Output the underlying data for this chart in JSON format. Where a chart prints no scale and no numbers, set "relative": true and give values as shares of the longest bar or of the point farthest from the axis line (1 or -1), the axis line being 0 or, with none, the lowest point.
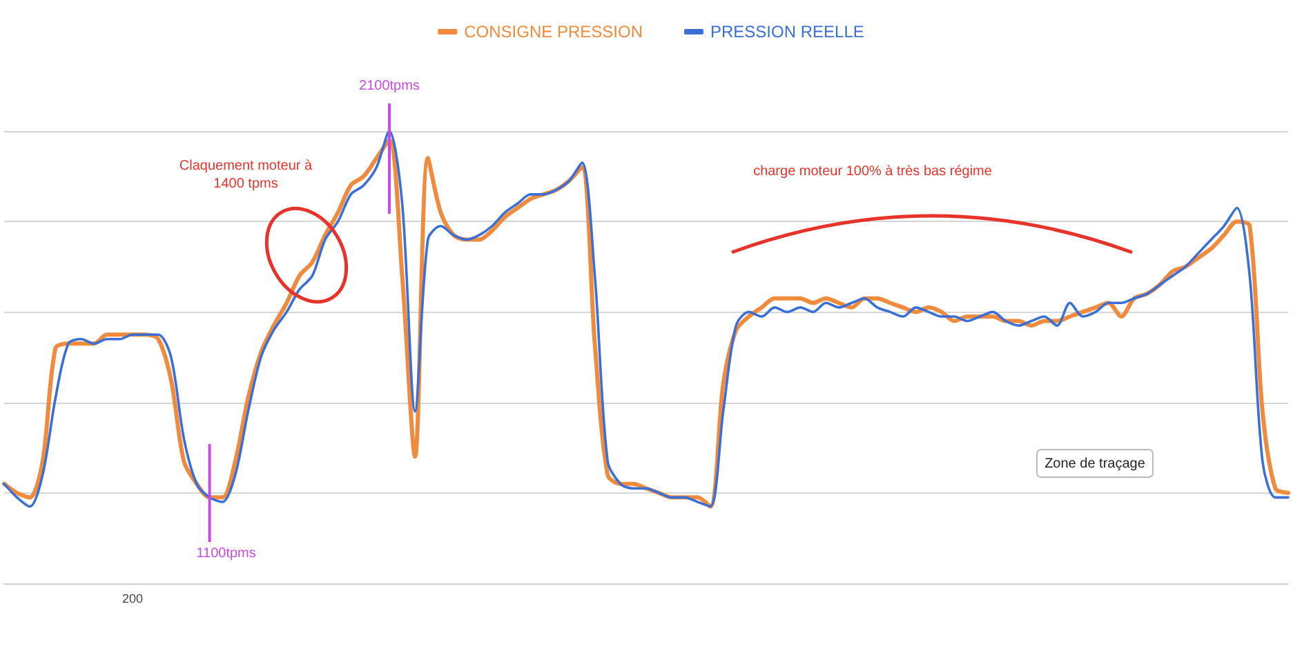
{
  "chart_data": {
    "type": "line",
    "relative": true,
    "grid": "y",
    "legend": "top",
    "marker": "none",
    "categories": [
      null,
      null,
      null,
      null,
      null,
      null,
      null,
      null,
      null,
      null,
      null,
      null,
      null,
      null,
      null,
      null,
      null,
      null,
      null,
      null,
      null,
      null,
      null,
      null,
      null,
      null,
      null,
      null,
      null,
      null,
      null,
      null,
      null,
      null,
      null,
      null,
      null,
      null,
      null,
      null,
      null,
      null,
      null,
      null,
      null,
      null,
      null,
      null,
      null,
      null,
      null,
      null,
      null,
      null,
      null,
      null,
      null,
      null,
      null,
      null,
      null,
      null,
      null,
      null,
      null,
      null,
      null,
      null,
      null,
      null,
      null,
      null,
      null,
      null,
      null,
      null,
      null,
      null,
      null,
      null,
      null,
      null,
      null,
      null,
      null,
      null,
      null,
      null,
      null,
      null,
      null,
      null,
      null,
      null,
      null,
      null,
      null,
      null,
      null,
      null,
      null
    ],
    "series": [
      {
        "name": "CONSIGNE PRESSION",
        "color": "#f08a3c",
        "values": [
          0.22,
          0.2,
          0.19,
          0.27,
          0.52,
          0.53,
          0.53,
          0.53,
          0.55,
          0.55,
          0.55,
          0.55,
          0.54,
          0.45,
          0.27,
          0.22,
          0.19,
          0.19,
          0.27,
          0.41,
          0.51,
          0.57,
          0.62,
          0.68,
          0.71,
          0.77,
          0.82,
          0.88,
          0.9,
          0.94,
          0.98,
          0.68,
          0.28,
          0.94,
          0.82,
          0.77,
          0.76,
          0.76,
          0.78,
          0.81,
          0.83,
          0.85,
          0.86,
          0.87,
          0.89,
          0.92,
          0.53,
          0.24,
          0.22,
          0.22,
          0.21,
          0.2,
          0.19,
          0.19,
          0.19,
          0.17,
          0.44,
          0.56,
          0.59,
          0.61,
          0.63,
          0.63,
          0.63,
          0.62,
          0.63,
          0.62,
          0.61,
          0.63,
          0.63,
          0.62,
          0.61,
          0.6,
          0.61,
          0.6,
          0.58,
          0.59,
          0.59,
          0.59,
          0.58,
          0.58,
          0.57,
          0.58,
          0.58,
          0.59,
          0.6,
          0.61,
          0.62,
          0.59,
          0.63,
          0.64,
          0.66,
          0.69,
          0.7,
          0.72,
          0.74,
          0.77,
          0.8,
          0.79,
          0.38,
          0.21,
          0.2
        ]
      },
      {
        "name": "PRESSION REELLE",
        "color": "#3a6fd8",
        "values": [
          0.22,
          0.19,
          0.17,
          0.24,
          0.41,
          0.53,
          0.54,
          0.53,
          0.54,
          0.54,
          0.55,
          0.55,
          0.55,
          0.5,
          0.32,
          0.22,
          0.19,
          0.18,
          0.24,
          0.38,
          0.5,
          0.56,
          0.6,
          0.65,
          0.68,
          0.76,
          0.8,
          0.86,
          0.88,
          0.92,
          1,
          0.84,
          0.38,
          0.76,
          0.79,
          0.77,
          0.76,
          0.77,
          0.79,
          0.82,
          0.84,
          0.86,
          0.86,
          0.87,
          0.89,
          0.93,
          0.68,
          0.27,
          0.22,
          0.21,
          0.21,
          0.2,
          0.19,
          0.19,
          0.18,
          0.17,
          0.38,
          0.57,
          0.6,
          0.59,
          0.61,
          0.6,
          0.61,
          0.6,
          0.62,
          0.61,
          0.62,
          0.63,
          0.61,
          0.6,
          0.59,
          0.61,
          0.6,
          0.59,
          0.59,
          0.58,
          0.59,
          0.6,
          0.58,
          0.57,
          0.58,
          0.59,
          0.57,
          0.62,
          0.59,
          0.6,
          0.62,
          0.62,
          0.63,
          0.64,
          0.66,
          0.68,
          0.7,
          0.73,
          0.76,
          0.79,
          0.83,
          0.68,
          0.27,
          0.19,
          0.19
        ]
      }
    ],
    "annotations": [
      "Claquement moteur à\n1400 tpms",
      "2100tpms",
      "1100tpms",
      "charge moteur 100% à très bas régime",
      "Zone de traçage",
      "200"
    ]
  }
}
